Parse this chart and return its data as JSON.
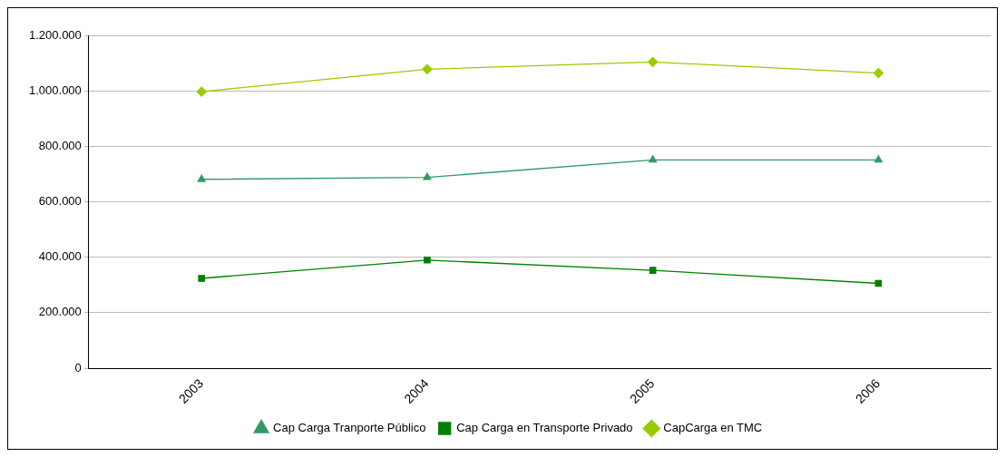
{
  "chart_data": {
    "type": "line",
    "categories": [
      "2003",
      "2004",
      "2005",
      "2006"
    ],
    "series": [
      {
        "name": "Cap Carga Tranporte Público",
        "color": "#339966",
        "marker": "triangle",
        "values": [
          681000,
          688000,
          751000,
          751000
        ]
      },
      {
        "name": "Cap Carga en Transporte Privado",
        "color": "#008000",
        "marker": "square",
        "values": [
          324000,
          390000,
          353000,
          306000
        ]
      },
      {
        "name": "CapCarga en TMC",
        "color": "#99cc00",
        "marker": "diamond",
        "values": [
          997000,
          1078000,
          1104000,
          1064000
        ]
      }
    ],
    "ylim": [
      0,
      1200000
    ],
    "yticks": [
      0,
      {
        "value": 200000,
        "label": "200.000"
      },
      {
        "value": 400000,
        "label": "400.000"
      },
      {
        "value": 600000,
        "label": "600.000"
      },
      {
        "value": 800000,
        "label": "800.000"
      },
      {
        "value": 1000000,
        "label": "1.000.000"
      },
      {
        "value": 1200000,
        "label": "1.200.000"
      }
    ],
    "grid": "y",
    "legend": "bottom",
    "line_style": "solid"
  }
}
